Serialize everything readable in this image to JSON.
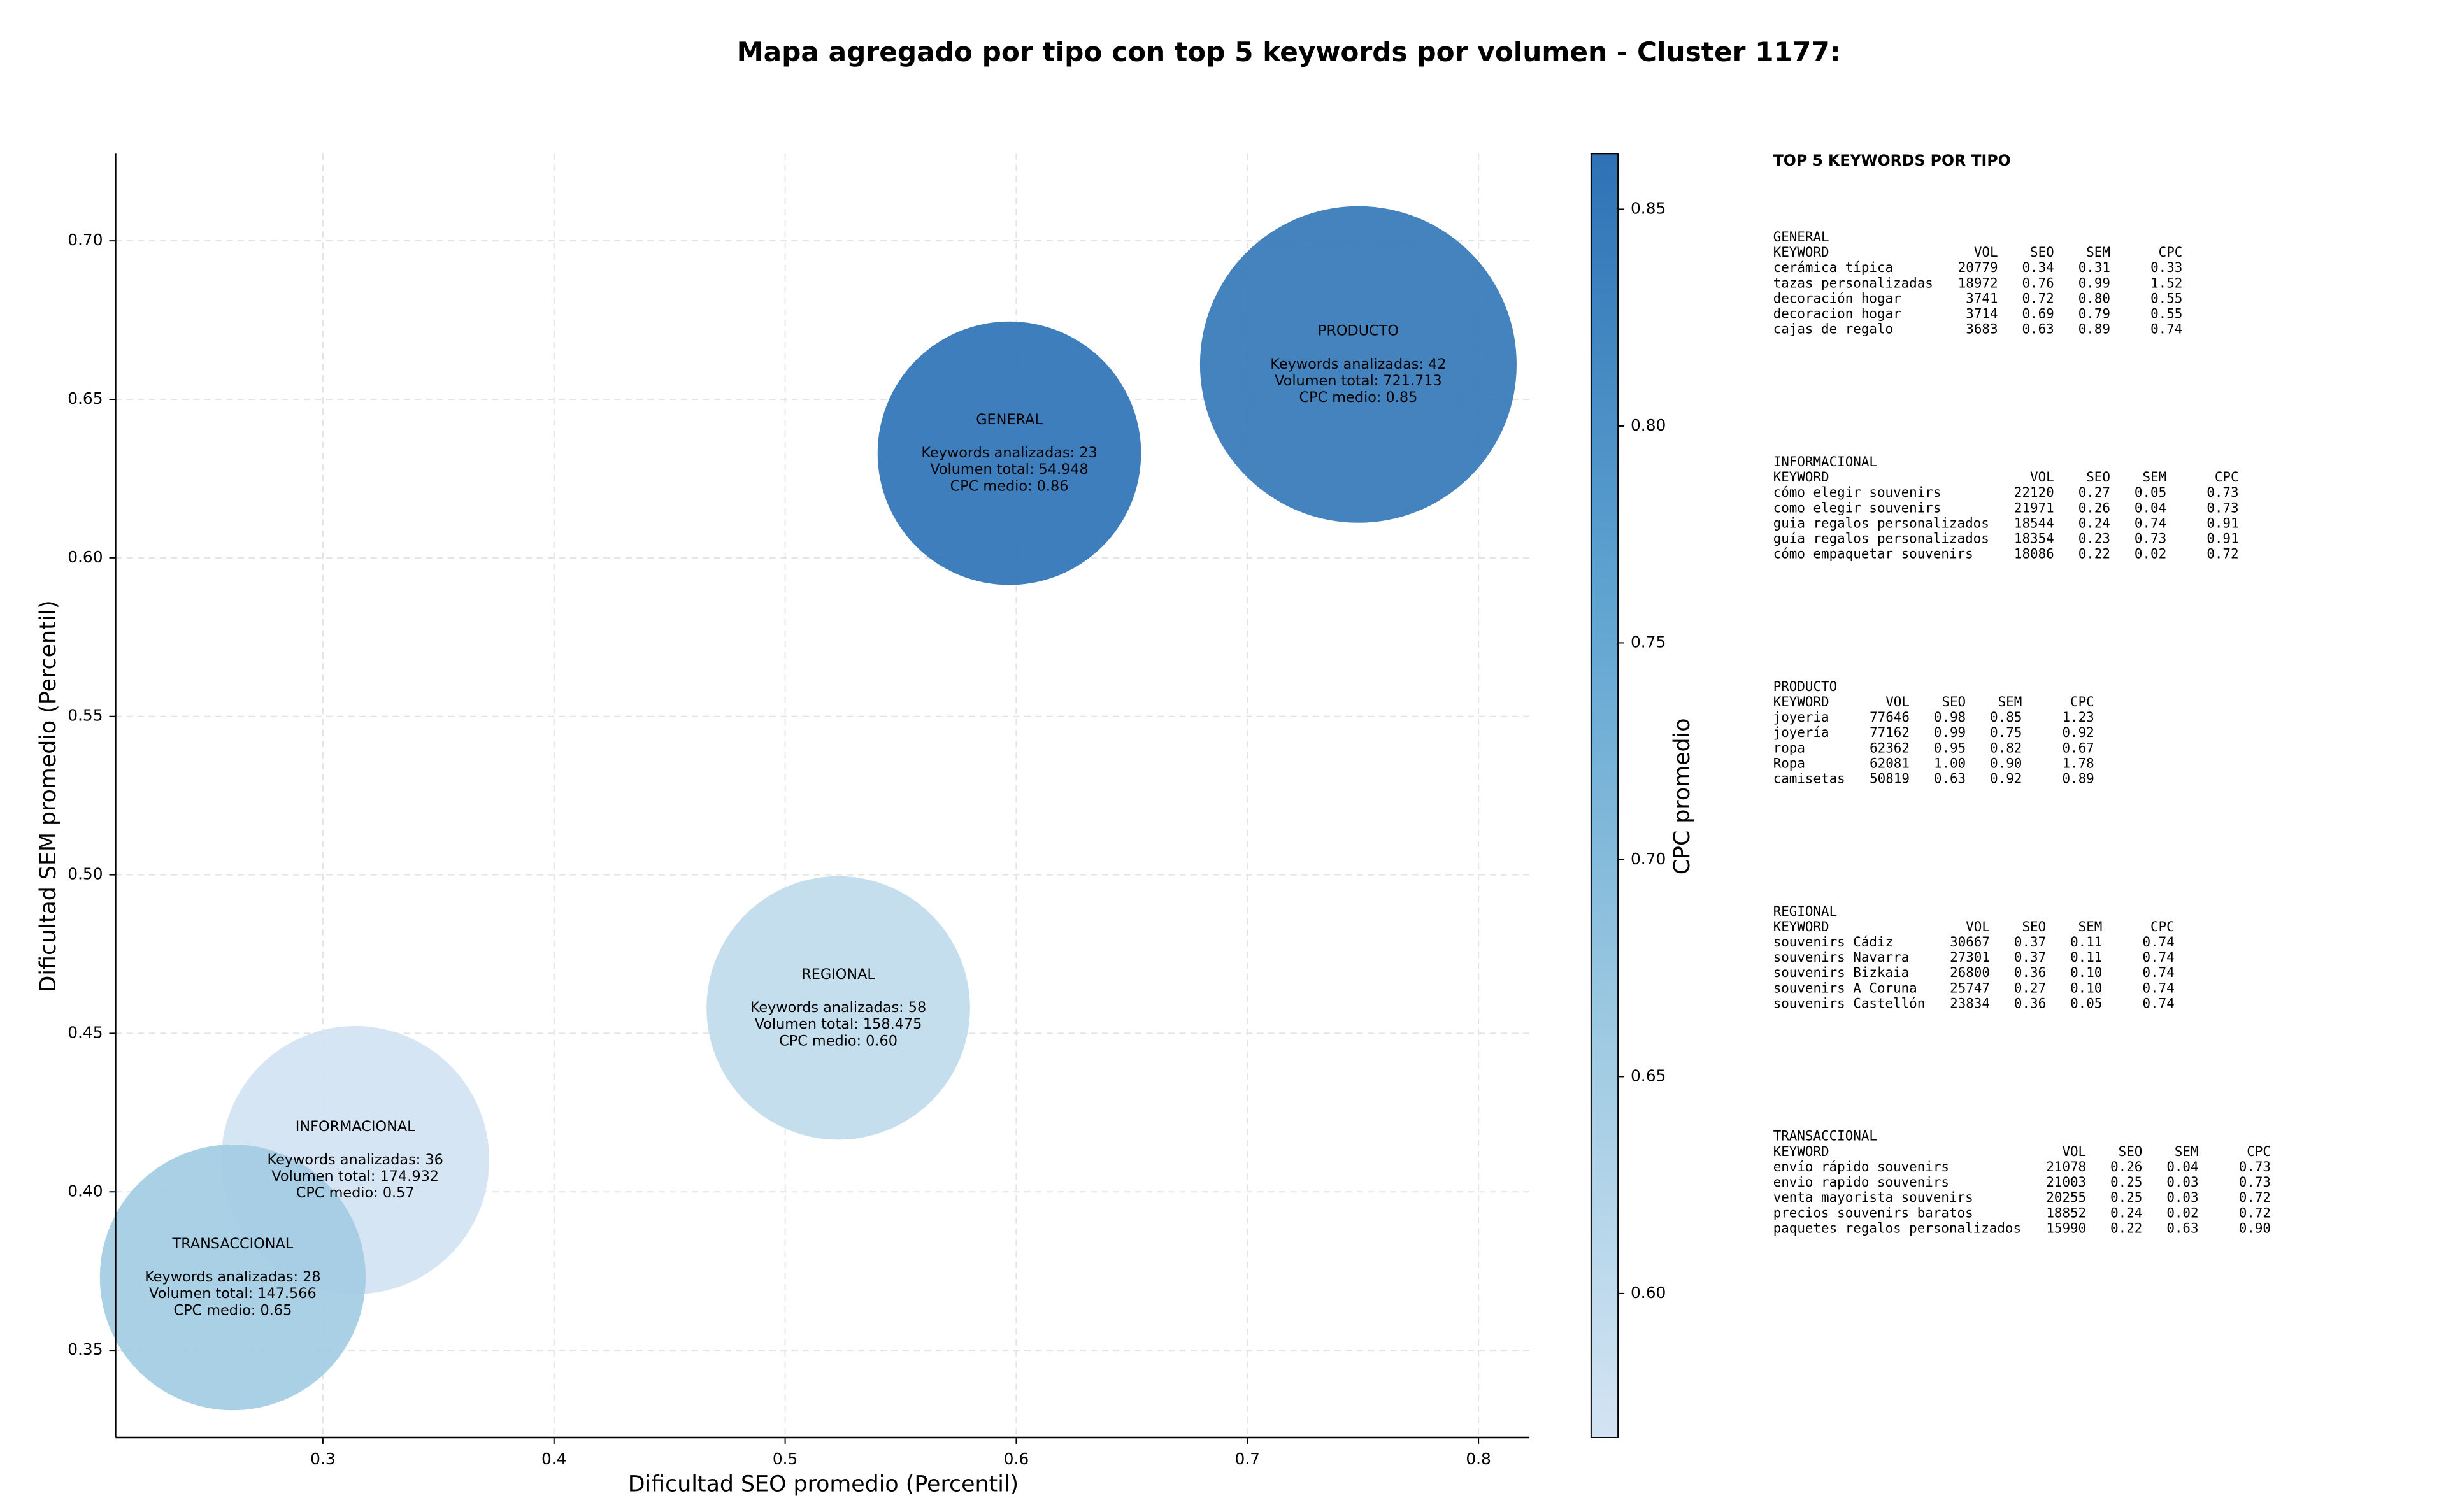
{
  "chart_data": {
    "type": "bubble",
    "title": "Mapa agregado por tipo con top 5 keywords por volumen - Cluster 1177:",
    "x_label": "Dificultad SEO promedio (Percentil)",
    "y_label": "Dificultad SEM promedio (Percentil)",
    "xlim": [
      0.2103,
      0.822
    ],
    "ylim": [
      0.3225,
      0.7275
    ],
    "xticks": [
      0.3,
      0.4,
      0.5,
      0.6,
      0.7,
      0.8
    ],
    "yticks": [
      0.35,
      {
        "value": 0.4,
        "label": "0.40"
      },
      0.45,
      {
        "value": 0.5,
        "label": "0.50"
      },
      0.55,
      {
        "value": 0.6,
        "label": "0.60"
      },
      0.65,
      {
        "value": 0.7,
        "label": "0.70"
      }
    ],
    "grid": true,
    "colorbar": {
      "label": "CPC promedio",
      "clim": [
        0.5668,
        0.8628
      ],
      "ticks": [
        {
          "value": 0.6,
          "label": "0.60"
        },
        0.65,
        {
          "value": 0.7,
          "label": "0.70"
        },
        0.75,
        {
          "value": 0.8,
          "label": "0.80"
        },
        0.85
      ],
      "colors": [
        "#d3e4f3",
        "#9ac8e1",
        "#5da2d0",
        "#2e72b5"
      ]
    },
    "points": [
      {
        "name": "GENERAL",
        "x": 0.597,
        "y": 0.633,
        "size": 0.057,
        "cpc": 0.86,
        "annotation": [
          "Keywords analizadas: 23",
          "Volumen total: 54.948",
          "CPC medio: 0.86"
        ]
      },
      {
        "name": "INFORMACIONAL",
        "x": 0.314,
        "y": 0.41,
        "size": 0.058,
        "cpc": 0.57,
        "annotation": [
          "Keywords analizadas: 36",
          "Volumen total: 174.932",
          "CPC medio: 0.57"
        ]
      },
      {
        "name": "PRODUCTO",
        "x": 0.748,
        "y": 0.661,
        "size": 0.0685,
        "cpc": 0.85,
        "annotation": [
          "Keywords analizadas: 42",
          "Volumen total: 721.713",
          "CPC medio: 0.85"
        ]
      },
      {
        "name": "REGIONAL",
        "x": 0.523,
        "y": 0.458,
        "size": 0.057,
        "cpc": 0.6,
        "annotation": [
          "Keywords analizadas: 58",
          "Volumen total: 158.475",
          "CPC medio: 0.60"
        ]
      },
      {
        "name": "TRANSACCIONAL",
        "x": 0.261,
        "y": 0.373,
        "size": 0.0575,
        "cpc": 0.65,
        "annotation": [
          "Keywords analizadas: 28",
          "Volumen total: 147.566",
          "CPC medio: 0.65"
        ]
      }
    ]
  },
  "side_panel": {
    "title": "TOP 5 KEYWORDS POR TIPO",
    "header": [
      "KEYWORD",
      "VOL",
      "SEO",
      "SEM",
      "CPC"
    ],
    "sections": [
      {
        "name": "GENERAL",
        "rows": [
          [
            "cerámica típica",
            "20779",
            "0.34",
            "0.31",
            "0.33"
          ],
          [
            "tazas personalizadas",
            "18972",
            "0.76",
            "0.99",
            "1.52"
          ],
          [
            "decoración hogar",
            "3741",
            "0.72",
            "0.80",
            "0.55"
          ],
          [
            "decoracion hogar",
            "3714",
            "0.69",
            "0.79",
            "0.55"
          ],
          [
            "cajas de regalo",
            "3683",
            "0.63",
            "0.89",
            "0.74"
          ]
        ]
      },
      {
        "name": "INFORMACIONAL",
        "rows": [
          [
            "cómo elegir souvenirs",
            "22120",
            "0.27",
            "0.05",
            "0.73"
          ],
          [
            "como elegir souvenirs",
            "21971",
            "0.26",
            "0.04",
            "0.73"
          ],
          [
            "guia regalos personalizados",
            "18544",
            "0.24",
            "0.74",
            "0.91"
          ],
          [
            "guía regalos personalizados",
            "18354",
            "0.23",
            "0.73",
            "0.91"
          ],
          [
            "cómo empaquetar souvenirs",
            "18086",
            "0.22",
            "0.02",
            "0.72"
          ]
        ]
      },
      {
        "name": "PRODUCTO",
        "rows": [
          [
            "joyeria",
            "77646",
            "0.98",
            "0.85",
            "1.23"
          ],
          [
            "joyería",
            "77162",
            "0.99",
            "0.75",
            "0.92"
          ],
          [
            "ropa",
            "62362",
            "0.95",
            "0.82",
            "0.67"
          ],
          [
            "Ropa",
            "62081",
            "1.00",
            "0.90",
            "1.78"
          ],
          [
            "camisetas",
            "50819",
            "0.63",
            "0.92",
            "0.89"
          ]
        ]
      },
      {
        "name": "REGIONAL",
        "rows": [
          [
            "souvenirs Cádiz",
            "30667",
            "0.37",
            "0.11",
            "0.74"
          ],
          [
            "souvenirs Navarra",
            "27301",
            "0.37",
            "0.11",
            "0.74"
          ],
          [
            "souvenirs Bizkaia",
            "26800",
            "0.36",
            "0.10",
            "0.74"
          ],
          [
            "souvenirs A Coruna",
            "25747",
            "0.27",
            "0.10",
            "0.74"
          ],
          [
            "souvenirs Castellón",
            "23834",
            "0.36",
            "0.05",
            "0.74"
          ]
        ]
      },
      {
        "name": "TRANSACCIONAL",
        "rows": [
          [
            "envío rápido souvenirs",
            "21078",
            "0.26",
            "0.04",
            "0.73"
          ],
          [
            "envio rapido souvenirs",
            "21003",
            "0.25",
            "0.03",
            "0.73"
          ],
          [
            "venta mayorista souvenirs",
            "20255",
            "0.25",
            "0.03",
            "0.72"
          ],
          [
            "precios souvenirs baratos",
            "18852",
            "0.24",
            "0.02",
            "0.72"
          ],
          [
            "paquetes regalos personalizados",
            "15990",
            "0.22",
            "0.63",
            "0.90"
          ]
        ]
      }
    ]
  }
}
